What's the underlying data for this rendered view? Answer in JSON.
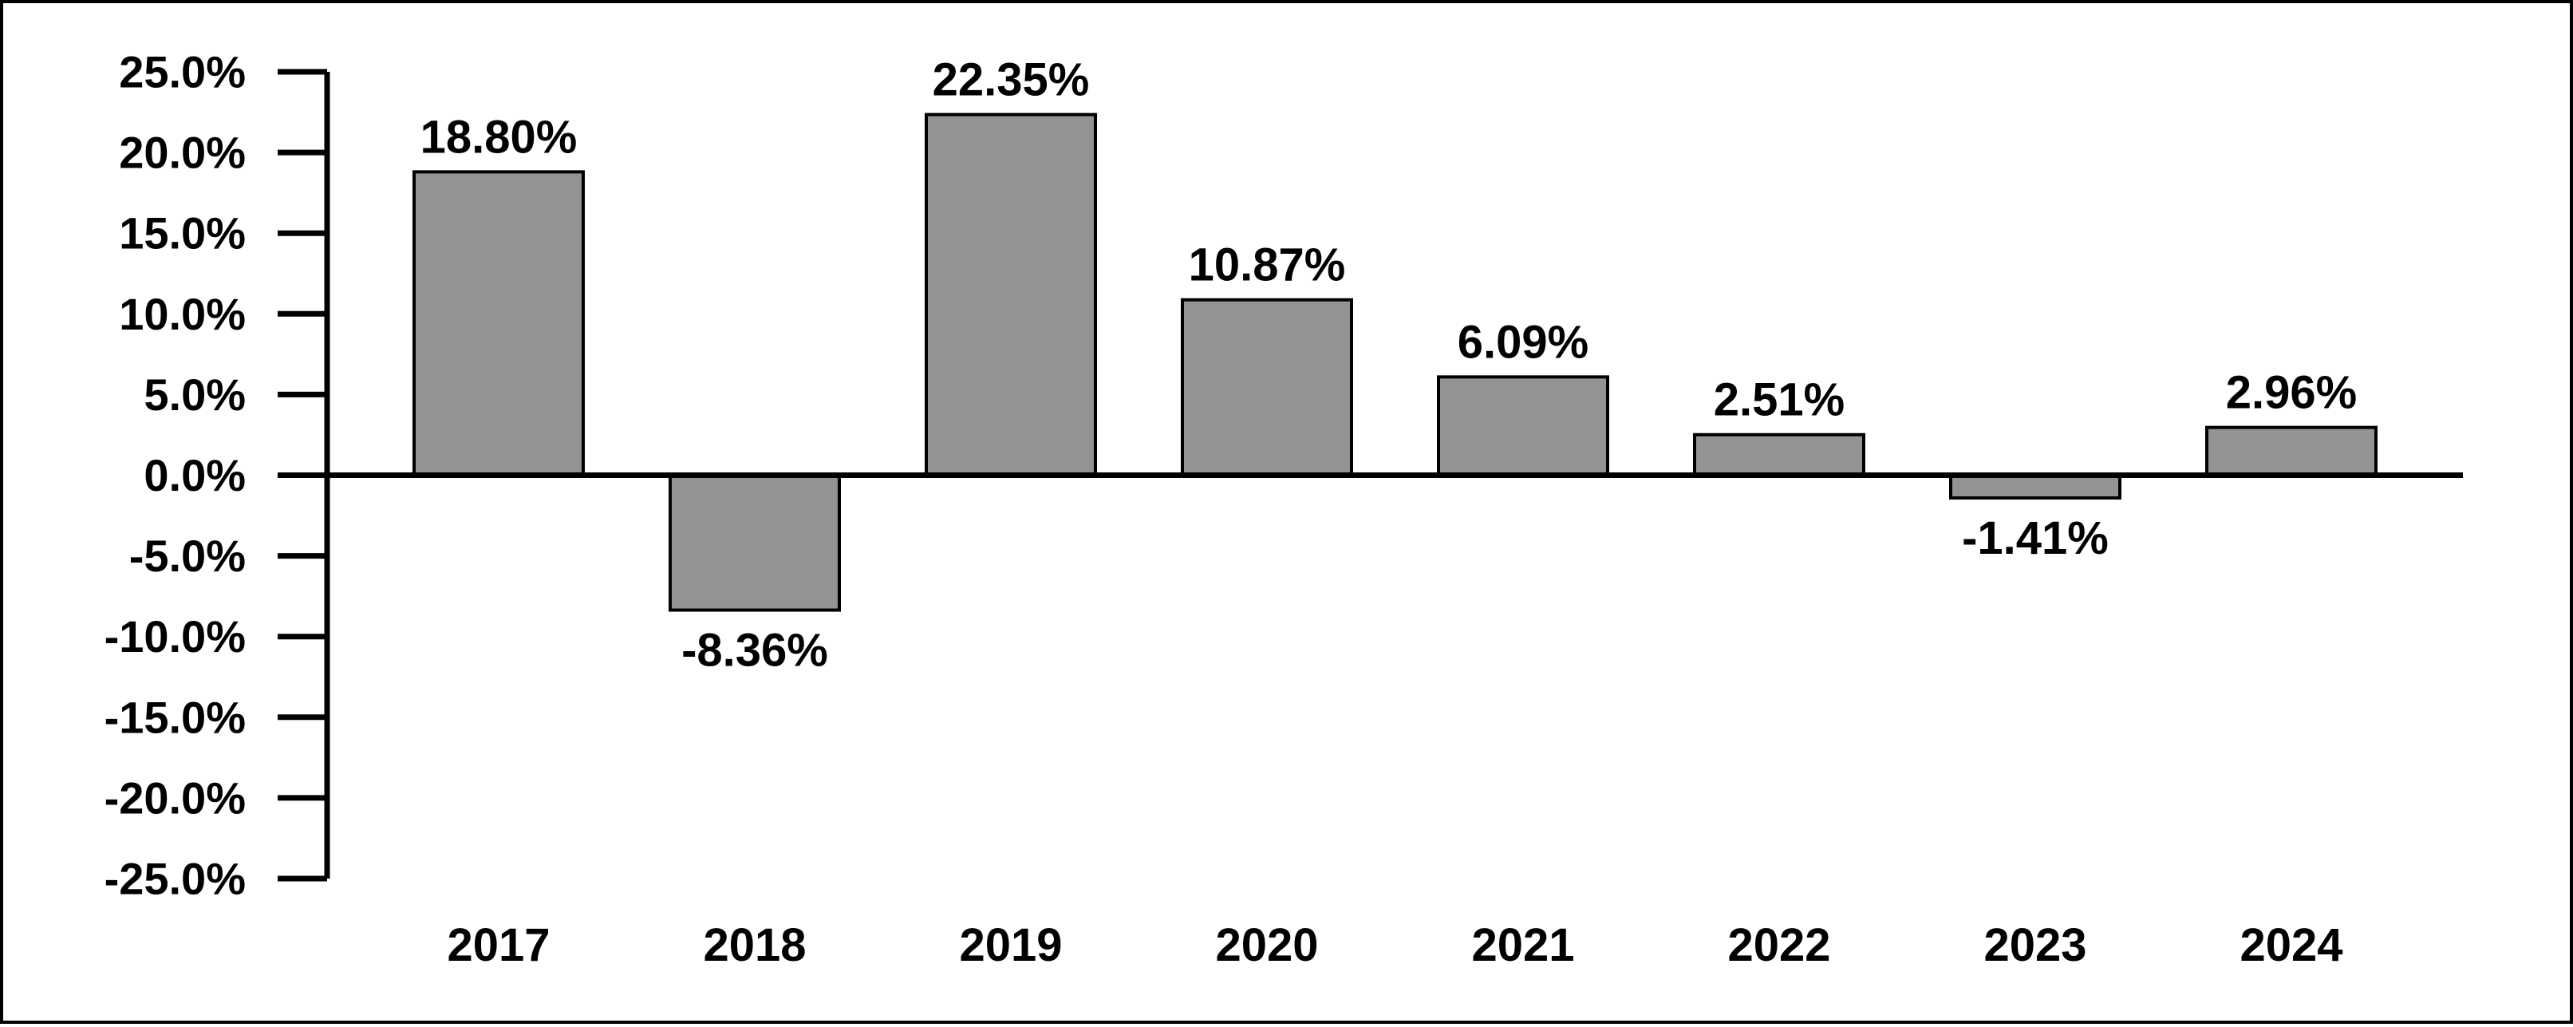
{
  "chart_data": {
    "type": "bar",
    "title": "",
    "xlabel": "",
    "ylabel": "",
    "categories": [
      "2017",
      "2018",
      "2019",
      "2020",
      "2021",
      "2022",
      "2023",
      "2024"
    ],
    "values": [
      18.8,
      -8.36,
      22.35,
      10.87,
      6.09,
      2.51,
      -1.41,
      2.96
    ],
    "data_labels": [
      "18.80%",
      "-8.36%",
      "22.35%",
      "10.87%",
      "6.09%",
      "2.51%",
      "-1.41%",
      "2.96%"
    ],
    "ylim": [
      -25,
      25
    ],
    "y_ticks": [
      25,
      20,
      15,
      10,
      5,
      0,
      -5,
      -10,
      -15,
      -20,
      -25
    ],
    "y_tick_labels": [
      "25.0%",
      "20.0%",
      "15.0%",
      "10.0%",
      "5.0%",
      "0.0%",
      "-5.0%",
      "-10.0%",
      "-15.0%",
      "-20.0%",
      "-25.0%"
    ],
    "grid": false,
    "legend": "none",
    "colors": {
      "bar_fill": "#939393",
      "bar_stroke": "#000000",
      "axis": "#000000",
      "text": "#000000",
      "background": "#ffffff"
    }
  }
}
